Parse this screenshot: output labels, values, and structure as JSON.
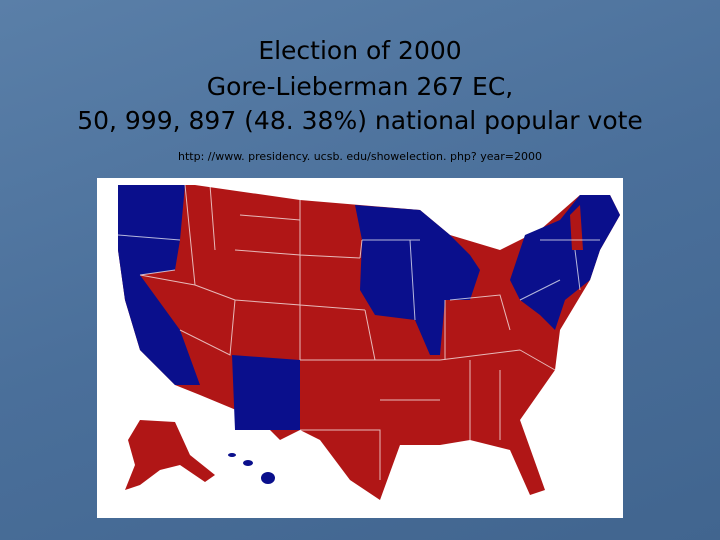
{
  "slide": {
    "title_lines": [
      "Election of 2000",
      "Gore-Lieberman 267 EC,",
      "50, 999, 897 (48. 38%) national popular vote"
    ],
    "url": "http: //www. presidency. ucsb. edu/showelection. php? year=2000"
  }
}
